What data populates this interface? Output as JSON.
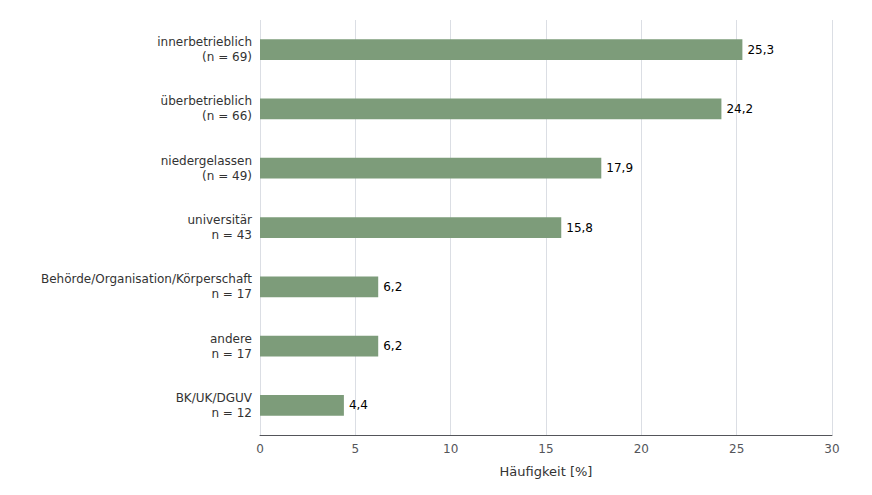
{
  "chart_data": {
    "type": "bar",
    "orientation": "horizontal",
    "categories": [
      "BK/UK/DGUV\nn = 12",
      "andere\nn = 17",
      "Behörde/Organisation/Körperschaft\nn = 17",
      "universitär\nn = 43",
      "niedergelassen\n(n = 49)",
      "überbetrieblich\n(n = 66)",
      "innerbetrieblich\n(n = 69)"
    ],
    "values": [
      4.4,
      6.2,
      6.2,
      15.8,
      17.9,
      24.2,
      25.3
    ],
    "value_labels": [
      "4,4",
      "6,2",
      "6,2",
      "15,8",
      "17,9",
      "24,2",
      "25,3"
    ],
    "data_labels": true,
    "color": "#7d9c7a",
    "xlabel": "Häufigkeit [%]",
    "xlim": [
      0,
      30
    ],
    "xticks": [
      0,
      5,
      10,
      15,
      20,
      25,
      30
    ],
    "grid": true
  }
}
